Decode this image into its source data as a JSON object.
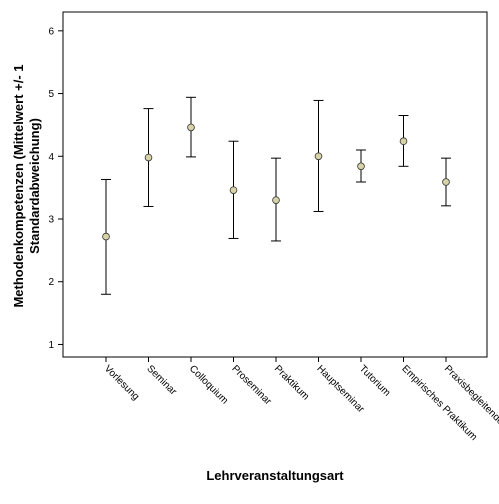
{
  "chart_data": {
    "type": "errorbar",
    "title": "",
    "xlabel": "Lehrveranstaltungsart",
    "ylabel_lines": [
      "Methodenkompetenzen (Mittelwert +/- 1",
      "Standardabweichung)"
    ],
    "ylim": [
      0.8,
      6.3
    ],
    "yticks": [
      1,
      2,
      3,
      4,
      5,
      6
    ],
    "grid": false,
    "categories": [
      "Vorlesung",
      "Seminar",
      "Colloquium",
      "Proseminar",
      "Praktikum",
      "Hauptseminar",
      "Tutorium",
      "Empirisches Praktikum",
      "Praxisbegleitendes Seminar"
    ],
    "series": [
      {
        "mean": [
          2.72,
          3.98,
          4.46,
          3.46,
          3.3,
          4.0,
          3.84,
          4.24,
          3.59
        ],
        "lower": [
          1.8,
          3.2,
          3.99,
          2.69,
          2.65,
          3.12,
          3.59,
          3.84,
          3.21
        ],
        "upper": [
          3.63,
          4.76,
          4.94,
          4.24,
          3.97,
          4.89,
          4.1,
          4.65,
          3.97
        ]
      }
    ],
    "marker_color": "#d8d3a6",
    "line_color": "#000000"
  }
}
